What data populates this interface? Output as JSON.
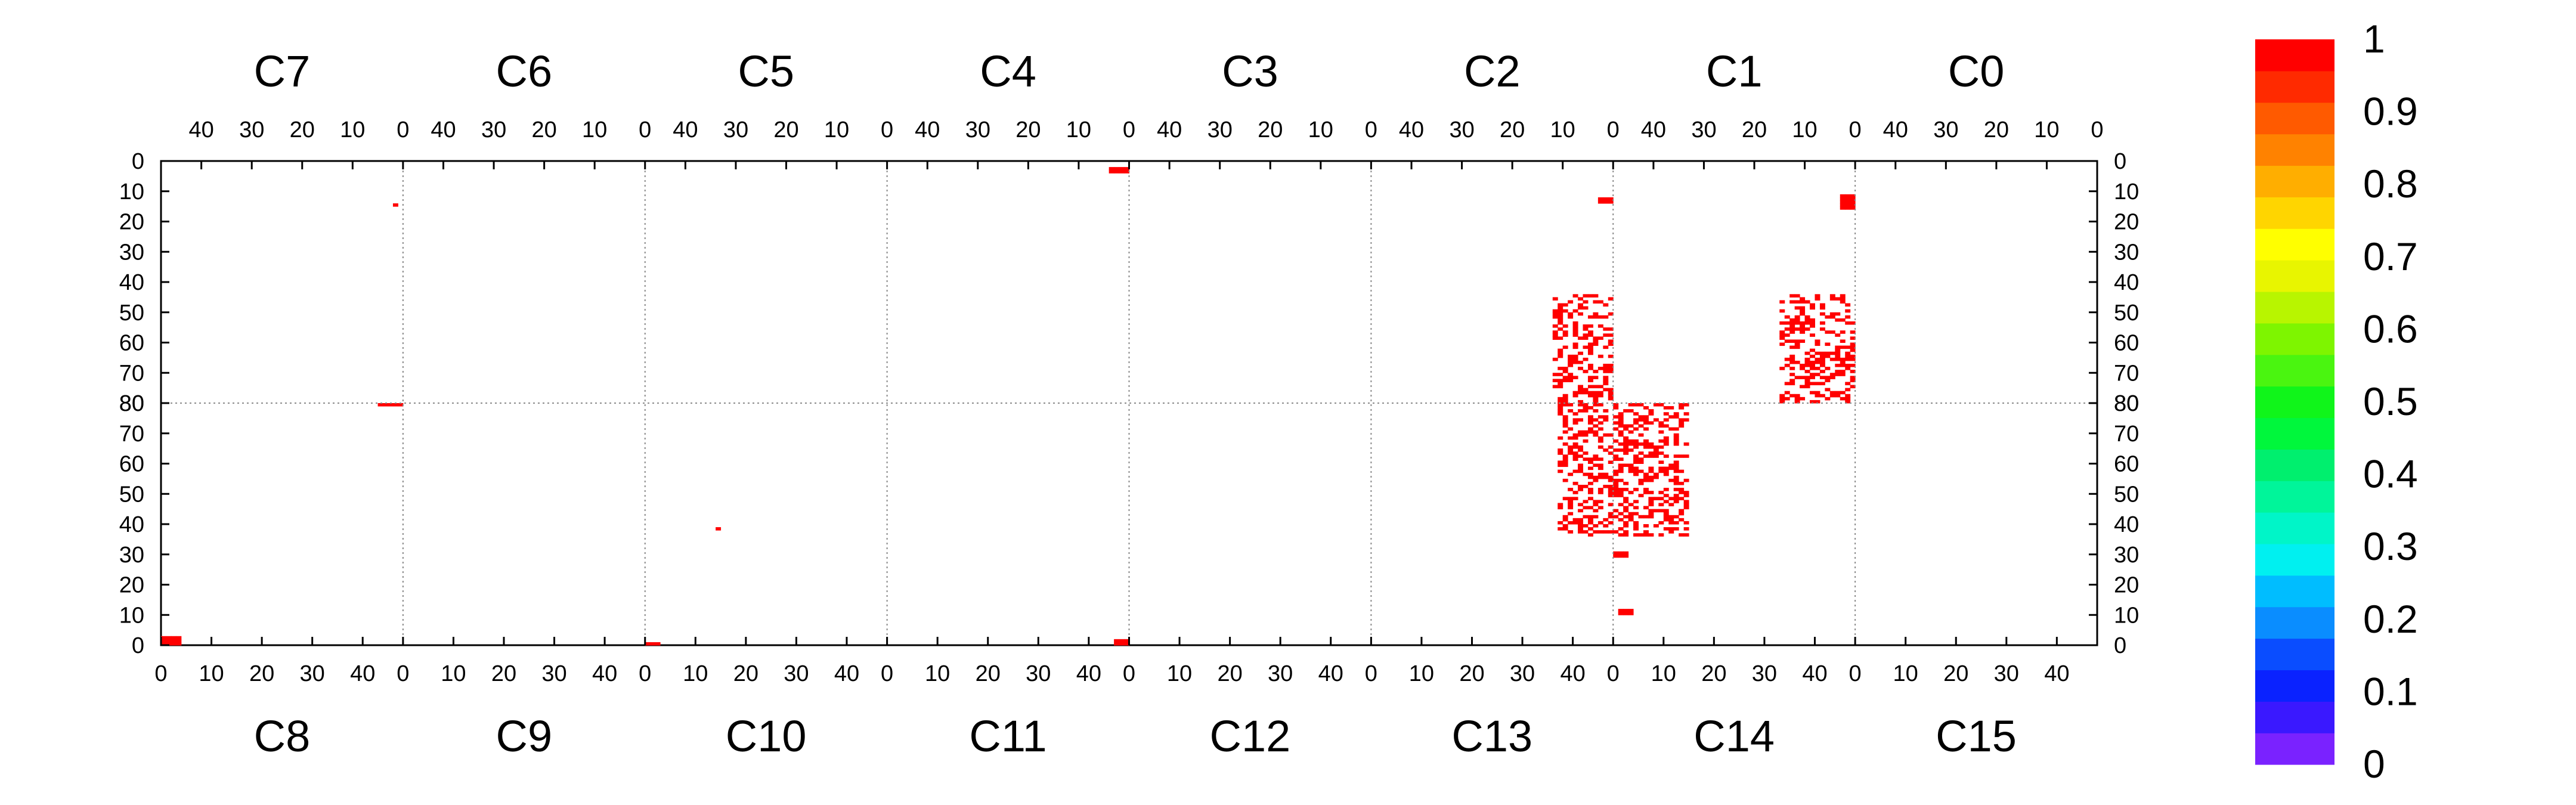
{
  "chart_data": {
    "type": "heatmap",
    "title": "",
    "xlabel": "",
    "ylabel": "",
    "top_chambers": [
      "C7",
      "C6",
      "C5",
      "C4",
      "C3",
      "C2",
      "C1",
      "C0"
    ],
    "bottom_chambers": [
      "C8",
      "C9",
      "C10",
      "C11",
      "C12",
      "C13",
      "C14",
      "C15"
    ],
    "top_x_ticks": [
      "40",
      "30",
      "20",
      "10",
      "0"
    ],
    "bottom_x_ticks": [
      "0",
      "10",
      "20",
      "30",
      "40"
    ],
    "top_y_ticks": [
      "0",
      "10",
      "20",
      "30",
      "40",
      "50",
      "60",
      "70",
      "80"
    ],
    "bottom_y_ticks": [
      "80",
      "70",
      "60",
      "50",
      "40",
      "30",
      "20",
      "10",
      "0"
    ],
    "x_range_per_chamber": [
      0,
      48
    ],
    "y_range": [
      0,
      80
    ],
    "colorscale": {
      "min": 0,
      "max": 1,
      "labels": [
        "1",
        "0.9",
        "0.8",
        "0.7",
        "0.6",
        "0.5",
        "0.4",
        "0.3",
        "0.2",
        "0.1",
        "0"
      ],
      "colors": [
        "#7a22ff",
        "#3a18ff",
        "#0a22ff",
        "#0a4dff",
        "#0a8dff",
        "#00bdff",
        "#00f0f0",
        "#00f5c8",
        "#00f59a",
        "#00ef6e",
        "#00f73c",
        "#10f51a",
        "#4af510",
        "#7ef500",
        "#b8f500",
        "#e8f500",
        "#ffff00",
        "#ffd500",
        "#ffae00",
        "#ff8200",
        "#ff5a00",
        "#ff2a00",
        "#ff0000"
      ]
    },
    "cell_color": "#ff0000",
    "hit_clusters": [
      {
        "chamber": "C7",
        "x": [
          1,
          2
        ],
        "y": [
          14,
          15
        ]
      },
      {
        "chamber": "C4",
        "x": [
          0,
          4
        ],
        "y": [
          2,
          4
        ]
      },
      {
        "chamber": "C2",
        "x": [
          0,
          3
        ],
        "y": [
          12,
          14
        ]
      },
      {
        "chamber": "C1",
        "x": [
          0,
          3
        ],
        "y": [
          11,
          16
        ]
      },
      {
        "chamber": "C2",
        "x": [
          0,
          12
        ],
        "y": [
          44,
          80
        ]
      },
      {
        "chamber": "C1",
        "x": [
          0,
          15
        ],
        "y": [
          44,
          80
        ]
      },
      {
        "chamber": "C8",
        "x": [
          0,
          4
        ],
        "y": [
          0,
          3
        ]
      },
      {
        "chamber": "C8",
        "x": [
          43,
          48
        ],
        "y": [
          79,
          80
        ]
      },
      {
        "chamber": "C10",
        "x": [
          0,
          3
        ],
        "y": [
          0,
          1
        ]
      },
      {
        "chamber": "C10",
        "x": [
          14,
          15
        ],
        "y": [
          38,
          39
        ]
      },
      {
        "chamber": "C11",
        "x": [
          45,
          48
        ],
        "y": [
          0,
          2
        ]
      },
      {
        "chamber": "C13",
        "x": [
          37,
          48
        ],
        "y": [
          36,
          80
        ]
      },
      {
        "chamber": "C14",
        "x": [
          0,
          15
        ],
        "y": [
          36,
          80
        ]
      },
      {
        "chamber": "C14",
        "x": [
          0,
          3
        ],
        "y": [
          29,
          31
        ]
      },
      {
        "chamber": "C14",
        "x": [
          1,
          4
        ],
        "y": [
          10,
          12
        ]
      }
    ]
  }
}
